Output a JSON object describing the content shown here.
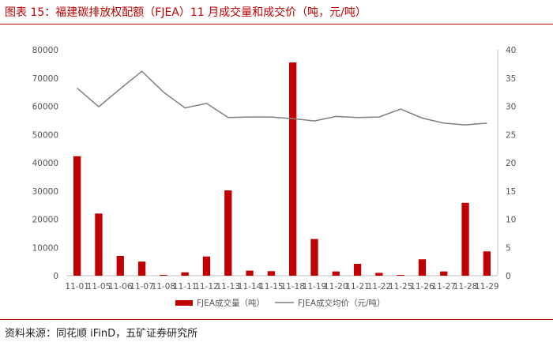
{
  "title": "图表 15：福建碳排放权配额（FJEA）11 月成交量和成交价（吨，元/吨）",
  "source": "资料来源：同花顺 iFinD，五矿证券研究所",
  "colors": {
    "bar": "#c00000",
    "line": "#7f7f7f",
    "accent": "#c00000"
  },
  "chart_data": {
    "type": "bar",
    "categories": [
      "11-01",
      "11-05",
      "11-06",
      "11-07",
      "11-08",
      "11-11",
      "11-12",
      "11-13",
      "11-14",
      "11-15",
      "11-18",
      "11-19",
      "11-20",
      "11-21",
      "11-22",
      "11-25",
      "11-26",
      "11-27",
      "11-28",
      "11-29"
    ],
    "series": [
      {
        "name": "FJEA成交量（吨）",
        "type": "bar",
        "axis": "left",
        "values": [
          42300,
          22000,
          7000,
          5000,
          300,
          1200,
          6800,
          30200,
          1800,
          1600,
          75500,
          13000,
          1500,
          4200,
          1000,
          300,
          5800,
          1500,
          25800,
          8600
        ]
      },
      {
        "name": "FJEA成交均价（元/吨）",
        "type": "line",
        "axis": "right",
        "values": [
          33.2,
          29.9,
          33.1,
          36.2,
          32.5,
          29.7,
          30.5,
          28.0,
          28.1,
          28.1,
          27.8,
          27.4,
          28.2,
          28.0,
          28.1,
          29.5,
          27.9,
          27.0,
          26.7,
          27.0
        ]
      }
    ],
    "ylim": [
      0,
      80000
    ],
    "y2lim": [
      0,
      40
    ],
    "yticks": [
      "0",
      "10000",
      "20000",
      "30000",
      "40000",
      "50000",
      "60000",
      "70000",
      "80000"
    ],
    "y2ticks": [
      "0",
      "5",
      "10",
      "15",
      "20",
      "25",
      "30",
      "35",
      "40"
    ],
    "legend": "bottom-center",
    "grid": false
  }
}
